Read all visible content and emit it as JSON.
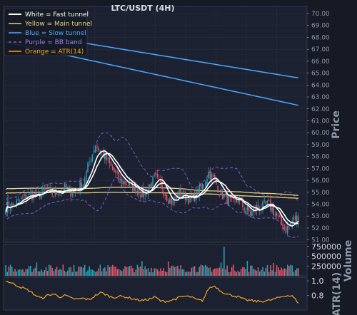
{
  "chart_data": {
    "type": "candlestick",
    "title": "LTC/USDT (4H)",
    "colors": {
      "background": "#151a25",
      "panel_bg": "#1b2130",
      "up": "#26a6b5",
      "down": "#e0586f",
      "fast": "#ffffff",
      "main": "#e8d27a",
      "slow": "#4ea7ff",
      "bb": "#7b5cd6",
      "atr": "#f5a623",
      "grid": "#2a3142"
    },
    "legend": {
      "position": "top-left",
      "entries": [
        {
          "label": "White = Fast tunnel",
          "color": "#ffffff",
          "style": "solid"
        },
        {
          "label": "Yellow = Main tunnel",
          "color": "#e8d27a",
          "style": "solid"
        },
        {
          "label": "Blue = Slow tunnel",
          "color": "#4ea7ff",
          "style": "solid"
        },
        {
          "label": "Purple = BB band",
          "color": "#7b5cd6",
          "style": "dashed"
        },
        {
          "label": "Orange = ATR(14)",
          "color": "#f5a623",
          "style": "solid"
        }
      ]
    },
    "price_panel": {
      "ylabel": "Price",
      "ylim": [
        50.8,
        70.6
      ],
      "yticks": [
        "70.00",
        "69.00",
        "68.00",
        "67.00",
        "66.00",
        "65.00",
        "64.00",
        "63.00",
        "62.00",
        "61.00",
        "60.00",
        "59.00",
        "58.00",
        "57.00",
        "56.00",
        "55.00",
        "54.00",
        "53.00",
        "52.00",
        "51.00"
      ]
    },
    "volume_panel": {
      "ylabel": "Volume",
      "ylim": [
        0,
        800000
      ],
      "yticks": [
        "750000",
        "500000",
        "250000"
      ]
    },
    "atr_panel": {
      "ylabel": "ATR(14)",
      "ylim": [
        0.6,
        1.05
      ],
      "yticks": [
        "1.0",
        "0.8"
      ]
    },
    "grid": true,
    "anchors": {
      "close": [
        53.8,
        53.9,
        54.2,
        54.5,
        54.9,
        54.6,
        55.0,
        55.2,
        54.8,
        55.1,
        55.4,
        55.0,
        55.3,
        55.8,
        57.5,
        59.0,
        58.4,
        57.6,
        56.8,
        56.0,
        55.8,
        55.5,
        55.2,
        54.8,
        55.5,
        56.2,
        55.6,
        54.6,
        54.1,
        55.0,
        54.7,
        54.3,
        54.9,
        55.6,
        56.7,
        55.9,
        54.9,
        54.5,
        54.0,
        54.4,
        53.6,
        53.2,
        53.7,
        53.8,
        54.0,
        53.3,
        52.4,
        51.9,
        52.6,
        52.9
      ],
      "slow_upper_start": 68.6,
      "slow_upper_end": 64.6,
      "slow_lower_start": 67.6,
      "slow_lower_end": 62.3,
      "main_upper_start": 55.5,
      "main_upper_end": 54.9,
      "main_lower_start": 55.1,
      "main_lower_end": 54.6,
      "atr": [
        1.0,
        0.97,
        0.93,
        0.9,
        0.86,
        0.8,
        0.76,
        0.8,
        0.82,
        0.78,
        0.8,
        0.76,
        0.75,
        0.76,
        0.74,
        0.8,
        0.84,
        0.8,
        0.77,
        0.79,
        0.78,
        0.76,
        0.74,
        0.73,
        0.75,
        0.78,
        0.72,
        0.72,
        0.74,
        0.77,
        0.79,
        0.78,
        0.74,
        0.73,
        0.9,
        0.93,
        0.86,
        0.82,
        0.8,
        0.78,
        0.74,
        0.73,
        0.72,
        0.72,
        0.73,
        0.75,
        0.78,
        0.8,
        0.79,
        0.7
      ],
      "volume_spike_index": 141,
      "volume_spike_value": 740000
    },
    "candle_count": 190
  }
}
